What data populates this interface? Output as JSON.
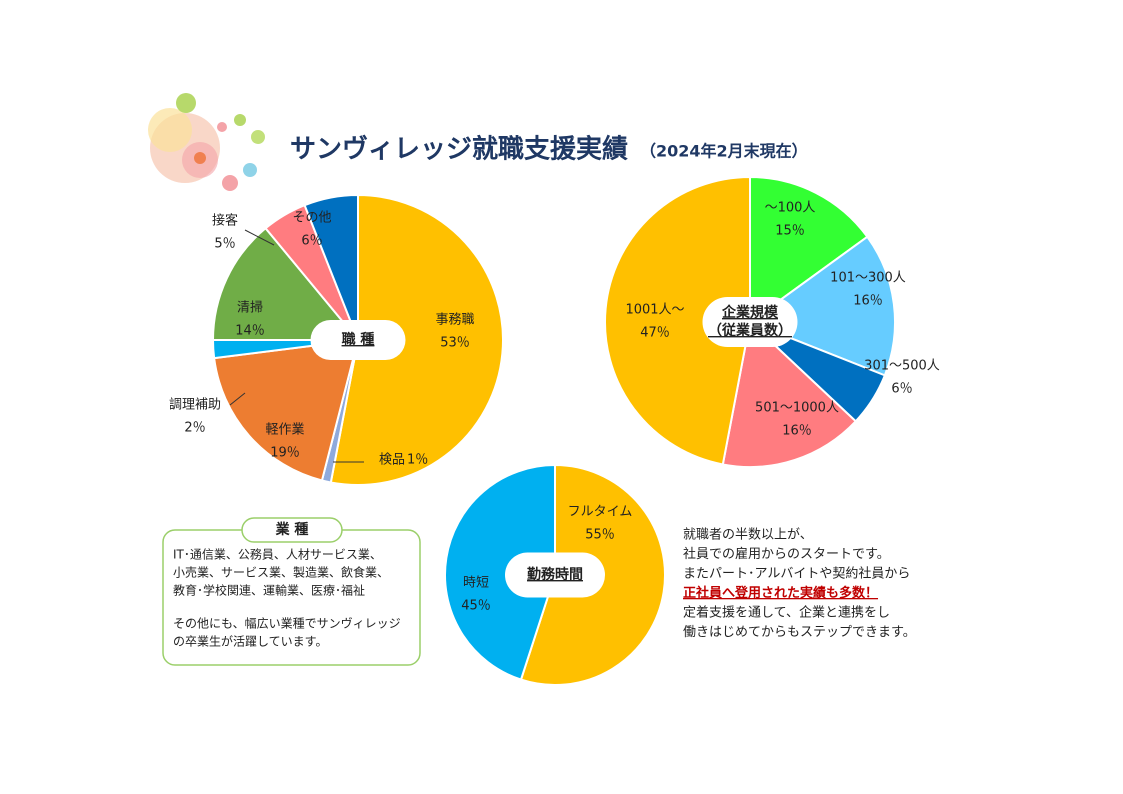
{
  "title": "サンヴィレッジ就職支援実績",
  "subtitle": "（2024年2月末現在）",
  "industry_box": {
    "heading": "業 種",
    "lines": [
      "IT･通信業、公務員、人材サービス業、",
      "小売業、サービス業、製造業、飲食業、",
      "教育･学校関連、運輸業、医療･福祉"
    ],
    "closing": [
      "その他にも、幅広い業種でサンヴィレッジ",
      "の卒業生が活躍しています。"
    ]
  },
  "note": {
    "lines": [
      "就職者の半数以上が、",
      "社員での雇用からのスタートです。",
      "またパート･アルバイトや契約社員から"
    ],
    "highlight": "正社員へ登用された実績も多数！",
    "closing": [
      "定着支援を通して、企業と連携をし",
      "働きはじめてからもステップできます。"
    ]
  },
  "chart_data": [
    {
      "type": "pie",
      "title": [
        "職 種"
      ],
      "categories": [
        "事務職",
        "検品",
        "軽作業",
        "調理補助",
        "清掃",
        "接客",
        "その他"
      ],
      "values": [
        53,
        1,
        19,
        2,
        14,
        5,
        6
      ],
      "value_labels": [
        "53％",
        "1％",
        "19％",
        "2％",
        "14％",
        "5％",
        "6％"
      ],
      "colors": [
        "#ffc000",
        "#8faadc",
        "#ed7d31",
        "#00b0f0",
        "#70ad47",
        "#ff7c80",
        "#0070c0"
      ]
    },
    {
      "type": "pie",
      "title": [
        "企業規模",
        "（従業員数）"
      ],
      "categories": [
        "～100人",
        "101～300人",
        "301～500人",
        "501～1000人",
        "1001人～"
      ],
      "values": [
        15,
        16,
        6,
        16,
        47
      ],
      "value_labels": [
        "15％",
        "16％",
        "6％",
        "16％",
        "47％"
      ],
      "colors": [
        "#33ff33",
        "#66ccff",
        "#0070c0",
        "#ff7c80",
        "#ffc000"
      ]
    },
    {
      "type": "pie",
      "title": [
        "勤務時間"
      ],
      "categories": [
        "フルタイム",
        "時短"
      ],
      "values": [
        55,
        45
      ],
      "value_labels": [
        "55％",
        "45％"
      ],
      "colors": [
        "#ffc000",
        "#00b0f0"
      ]
    }
  ]
}
